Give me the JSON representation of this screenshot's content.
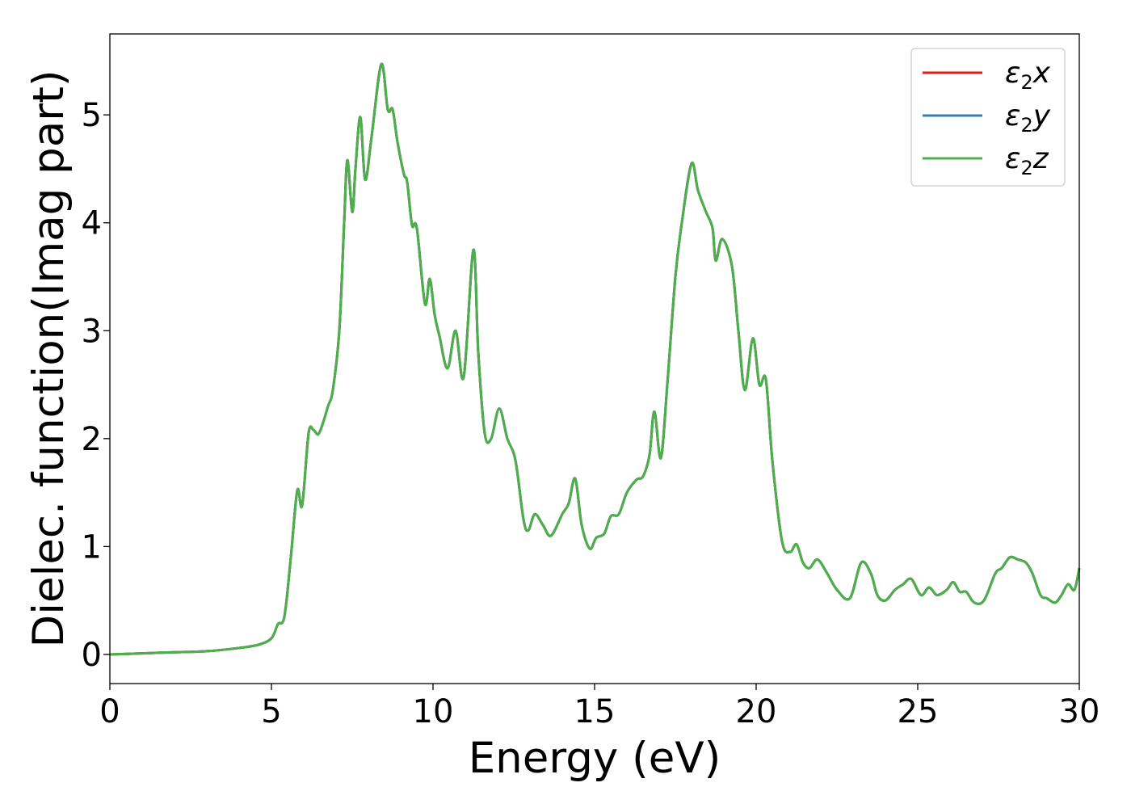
{
  "chart_data": {
    "type": "line",
    "xlabel": "Energy (eV)",
    "ylabel": "Dielec. function(Imag part)",
    "xlim": [
      0,
      30
    ],
    "ylim": [
      -0.27,
      5.75
    ],
    "xticks": [
      0,
      5,
      10,
      15,
      20,
      25,
      30
    ],
    "yticks": [
      0,
      1,
      2,
      3,
      4,
      5
    ],
    "grid": false,
    "legend_position": "top-right",
    "series": [
      {
        "name": "ε₂x",
        "sub": "2",
        "base": "ε",
        "suffix": "x",
        "color": "#e41a1c"
      },
      {
        "name": "ε₂y",
        "sub": "2",
        "base": "ε",
        "suffix": "y",
        "color": "#377eb8"
      },
      {
        "name": "ε₂z",
        "sub": "2",
        "base": "ε",
        "suffix": "z",
        "color": "#4daf4a"
      }
    ],
    "points": [
      [
        0,
        0
      ],
      [
        1,
        0.01
      ],
      [
        2,
        0.02
      ],
      [
        3,
        0.03
      ],
      [
        4,
        0.06
      ],
      [
        4.6,
        0.09
      ],
      [
        5.0,
        0.15
      ],
      [
        5.2,
        0.28
      ],
      [
        5.4,
        0.35
      ],
      [
        5.6,
        0.9
      ],
      [
        5.8,
        1.52
      ],
      [
        5.95,
        1.38
      ],
      [
        6.15,
        2.05
      ],
      [
        6.3,
        2.08
      ],
      [
        6.45,
        2.04
      ],
      [
        6.6,
        2.15
      ],
      [
        6.75,
        2.3
      ],
      [
        6.9,
        2.45
      ],
      [
        7.1,
        3.0
      ],
      [
        7.25,
        4.0
      ],
      [
        7.35,
        4.58
      ],
      [
        7.5,
        4.1
      ],
      [
        7.6,
        4.5
      ],
      [
        7.75,
        4.98
      ],
      [
        7.9,
        4.4
      ],
      [
        8.1,
        4.8
      ],
      [
        8.4,
        5.47
      ],
      [
        8.6,
        5.05
      ],
      [
        8.75,
        5.05
      ],
      [
        8.9,
        4.75
      ],
      [
        9.1,
        4.45
      ],
      [
        9.2,
        4.38
      ],
      [
        9.35,
        3.98
      ],
      [
        9.5,
        3.95
      ],
      [
        9.75,
        3.25
      ],
      [
        9.9,
        3.48
      ],
      [
        10.05,
        3.15
      ],
      [
        10.2,
        2.95
      ],
      [
        10.45,
        2.65
      ],
      [
        10.7,
        3.0
      ],
      [
        10.95,
        2.57
      ],
      [
        11.25,
        3.75
      ],
      [
        11.4,
        2.8
      ],
      [
        11.6,
        2.05
      ],
      [
        11.8,
        2.0
      ],
      [
        12.05,
        2.28
      ],
      [
        12.3,
        2.0
      ],
      [
        12.55,
        1.8
      ],
      [
        12.8,
        1.25
      ],
      [
        12.95,
        1.15
      ],
      [
        13.15,
        1.3
      ],
      [
        13.4,
        1.2
      ],
      [
        13.65,
        1.1
      ],
      [
        14.0,
        1.3
      ],
      [
        14.2,
        1.4
      ],
      [
        14.4,
        1.63
      ],
      [
        14.6,
        1.2
      ],
      [
        14.85,
        0.98
      ],
      [
        15.05,
        1.08
      ],
      [
        15.3,
        1.12
      ],
      [
        15.5,
        1.28
      ],
      [
        15.75,
        1.3
      ],
      [
        16.0,
        1.5
      ],
      [
        16.3,
        1.62
      ],
      [
        16.5,
        1.65
      ],
      [
        16.7,
        1.85
      ],
      [
        16.85,
        2.25
      ],
      [
        17.05,
        1.82
      ],
      [
        17.25,
        2.5
      ],
      [
        17.5,
        3.5
      ],
      [
        17.7,
        4.0
      ],
      [
        18.0,
        4.55
      ],
      [
        18.2,
        4.3
      ],
      [
        18.45,
        4.1
      ],
      [
        18.65,
        3.95
      ],
      [
        18.75,
        3.65
      ],
      [
        18.95,
        3.85
      ],
      [
        19.25,
        3.6
      ],
      [
        19.45,
        3.0
      ],
      [
        19.65,
        2.45
      ],
      [
        19.9,
        2.93
      ],
      [
        20.1,
        2.5
      ],
      [
        20.3,
        2.55
      ],
      [
        20.5,
        1.8
      ],
      [
        20.8,
        1.05
      ],
      [
        21.05,
        0.95
      ],
      [
        21.25,
        1.02
      ],
      [
        21.45,
        0.85
      ],
      [
        21.65,
        0.8
      ],
      [
        21.9,
        0.88
      ],
      [
        22.2,
        0.75
      ],
      [
        22.5,
        0.6
      ],
      [
        22.9,
        0.52
      ],
      [
        23.25,
        0.85
      ],
      [
        23.55,
        0.75
      ],
      [
        23.75,
        0.55
      ],
      [
        24.0,
        0.5
      ],
      [
        24.3,
        0.6
      ],
      [
        24.55,
        0.65
      ],
      [
        24.8,
        0.7
      ],
      [
        25.1,
        0.55
      ],
      [
        25.35,
        0.62
      ],
      [
        25.6,
        0.55
      ],
      [
        25.9,
        0.6
      ],
      [
        26.1,
        0.67
      ],
      [
        26.3,
        0.58
      ],
      [
        26.5,
        0.58
      ],
      [
        26.75,
        0.48
      ],
      [
        27.05,
        0.5
      ],
      [
        27.4,
        0.75
      ],
      [
        27.6,
        0.8
      ],
      [
        27.85,
        0.9
      ],
      [
        28.1,
        0.88
      ],
      [
        28.35,
        0.85
      ],
      [
        28.55,
        0.75
      ],
      [
        28.8,
        0.55
      ],
      [
        29.0,
        0.52
      ],
      [
        29.25,
        0.48
      ],
      [
        29.45,
        0.55
      ],
      [
        29.65,
        0.65
      ],
      [
        29.85,
        0.6
      ],
      [
        30,
        0.8
      ]
    ]
  }
}
